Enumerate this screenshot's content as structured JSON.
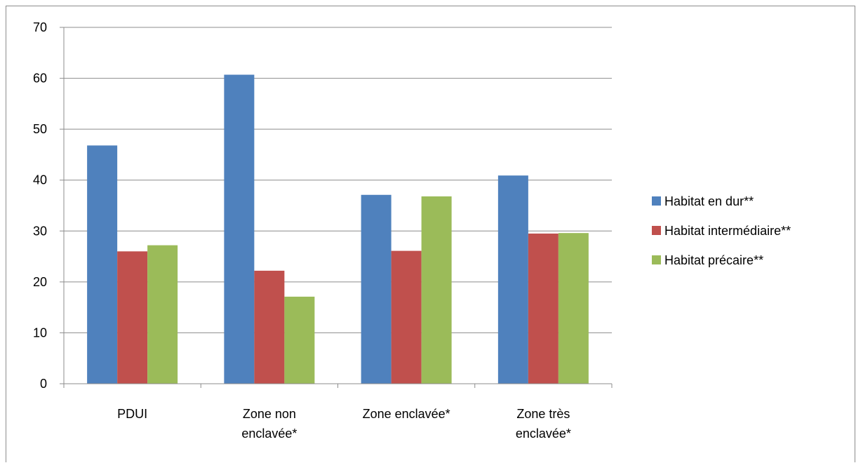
{
  "chart_data": {
    "type": "bar",
    "title": "",
    "xlabel": "",
    "ylabel": "",
    "ylim": [
      0,
      70
    ],
    "yticks": [
      0,
      10,
      20,
      30,
      40,
      50,
      60,
      70
    ],
    "grid": true,
    "legend_position": "right",
    "categories": [
      [
        "PDUI"
      ],
      [
        "Zone non",
        "enclavée*"
      ],
      [
        "Zone enclavée*"
      ],
      [
        "Zone très",
        "enclavée*"
      ]
    ],
    "series": [
      {
        "name": "Habitat en dur**",
        "color": "#4F81BD",
        "values": [
          46.8,
          60.7,
          37.1,
          40.9
        ]
      },
      {
        "name": "Habitat intermédiaire**",
        "color": "#C0504D",
        "values": [
          26.0,
          22.2,
          26.1,
          29.5
        ]
      },
      {
        "name": "Habitat précaire**",
        "color": "#9BBB59",
        "values": [
          27.2,
          17.1,
          36.8,
          29.6
        ]
      }
    ]
  }
}
